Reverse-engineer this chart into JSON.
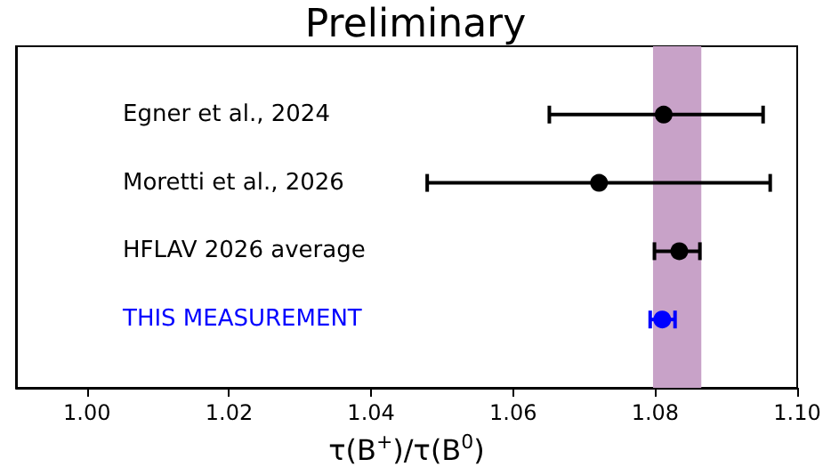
{
  "chart_data": {
    "type": "scatter",
    "orientation": "horizontal",
    "title": "Preliminary",
    "xlabel": "τ(B$^{+}$)/τ(B$^{0}$)",
    "categories": [
      "Egner et al., 2024",
      "Moretti et al., 2026",
      "HFLAV 2026 average",
      "THIS MEASUREMENT"
    ],
    "values": [
      1.0812,
      1.0721,
      1.0834,
      1.081
    ],
    "errors": [
      [
        1.0651,
        1.0952
      ],
      [
        1.0479,
        1.0962
      ],
      [
        1.0799,
        1.0863
      ],
      [
        1.0793,
        1.0828
      ]
    ],
    "colors": [
      "#000000",
      "#000000",
      "#000000",
      "#0000ff"
    ],
    "xlim": [
      0.99,
      1.1
    ],
    "xticks": [
      {
        "value": 1,
        "label": "1.00"
      },
      1.02,
      1.04,
      1.06,
      1.08,
      {
        "value": 1.1,
        "label": "1.10"
      }
    ],
    "bands": [
      {
        "axis": "x",
        "from": 1.0797,
        "to": 1.0865,
        "color": "#c8a2c8"
      }
    ],
    "marker": "circle",
    "grid": false
  }
}
